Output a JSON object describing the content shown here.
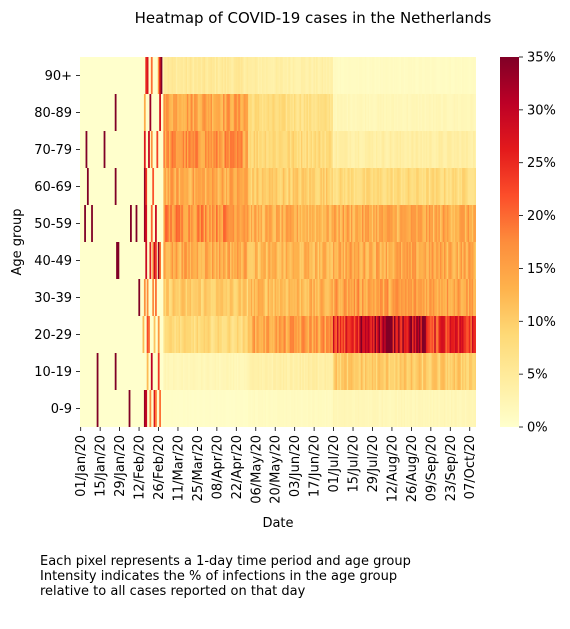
{
  "chart_data": {
    "type": "heatmap",
    "title": "Heatmap of COVID-19 cases in the Netherlands",
    "xlabel": "Date",
    "ylabel": "Age group",
    "rows": [
      "90+",
      "80-89",
      "70-79",
      "60-69",
      "50-59",
      "40-49",
      "30-39",
      "20-29",
      "10-19",
      "0-9"
    ],
    "x_start_date": "2020-01-01",
    "x_end_date": "2020-10-11",
    "x_tick_labels": [
      "01/Jan/20",
      "15/Jan/20",
      "29/Jan/20",
      "12/Feb/20",
      "26/Feb/20",
      "11/Mar/20",
      "25/Mar/20",
      "08/Apr/20",
      "22/Apr/20",
      "06/May/20",
      "20/May/20",
      "03/Jun/20",
      "17/Jun/20",
      "01/Jul/20",
      "15/Jul/20",
      "29/Jul/20",
      "12/Aug/20",
      "26/Aug/20",
      "09/Sep/20",
      "23/Sep/20",
      "07/Oct/20"
    ],
    "colorbar": {
      "min": 0,
      "max": 35,
      "unit": "%",
      "tick_labels": [
        "0%",
        "5%",
        "10%",
        "15%",
        "20%",
        "25%",
        "30%",
        "35%"
      ],
      "colormap": [
        "#ffffcc",
        "#ffeda0",
        "#fed976",
        "#feb24c",
        "#fd8d3c",
        "#fc4e2a",
        "#e31a1c",
        "#bd0026",
        "#800026"
      ]
    },
    "approx_row_profiles_percent": {
      "90+": {
        "mar_apr": 5,
        "may_jun": 4,
        "jul_oct": 1
      },
      "80-89": {
        "mar_apr": 15,
        "may_jun": 8,
        "jul_oct": 2
      },
      "70-79": {
        "mar_apr": 16,
        "may_jun": 9,
        "jul_oct": 4
      },
      "60-69": {
        "mar_apr": 14,
        "may_jun": 10,
        "jul_oct": 8
      },
      "50-59": {
        "mar_apr": 17,
        "may_jun": 13,
        "jul_oct": 14
      },
      "40-49": {
        "mar_apr": 14,
        "may_jun": 12,
        "jul_oct": 14
      },
      "30-39": {
        "mar_apr": 10,
        "may_jun": 12,
        "jul_oct": 15
      },
      "20-29": {
        "mar_apr": 8,
        "may_jun": 14,
        "jul_oct": 24
      },
      "10-19": {
        "mar_apr": 2,
        "may_jun": 3,
        "jul_oct": 10
      },
      "0-9": {
        "mar_apr": 0.5,
        "may_jun": 1,
        "jul_oct": 2
      }
    },
    "caption_lines": [
      "Each pixel represents a 1-day time period and age group",
      "Intensity indicates the % of infections in the age group",
      "relative to all cases reported on that day"
    ]
  }
}
